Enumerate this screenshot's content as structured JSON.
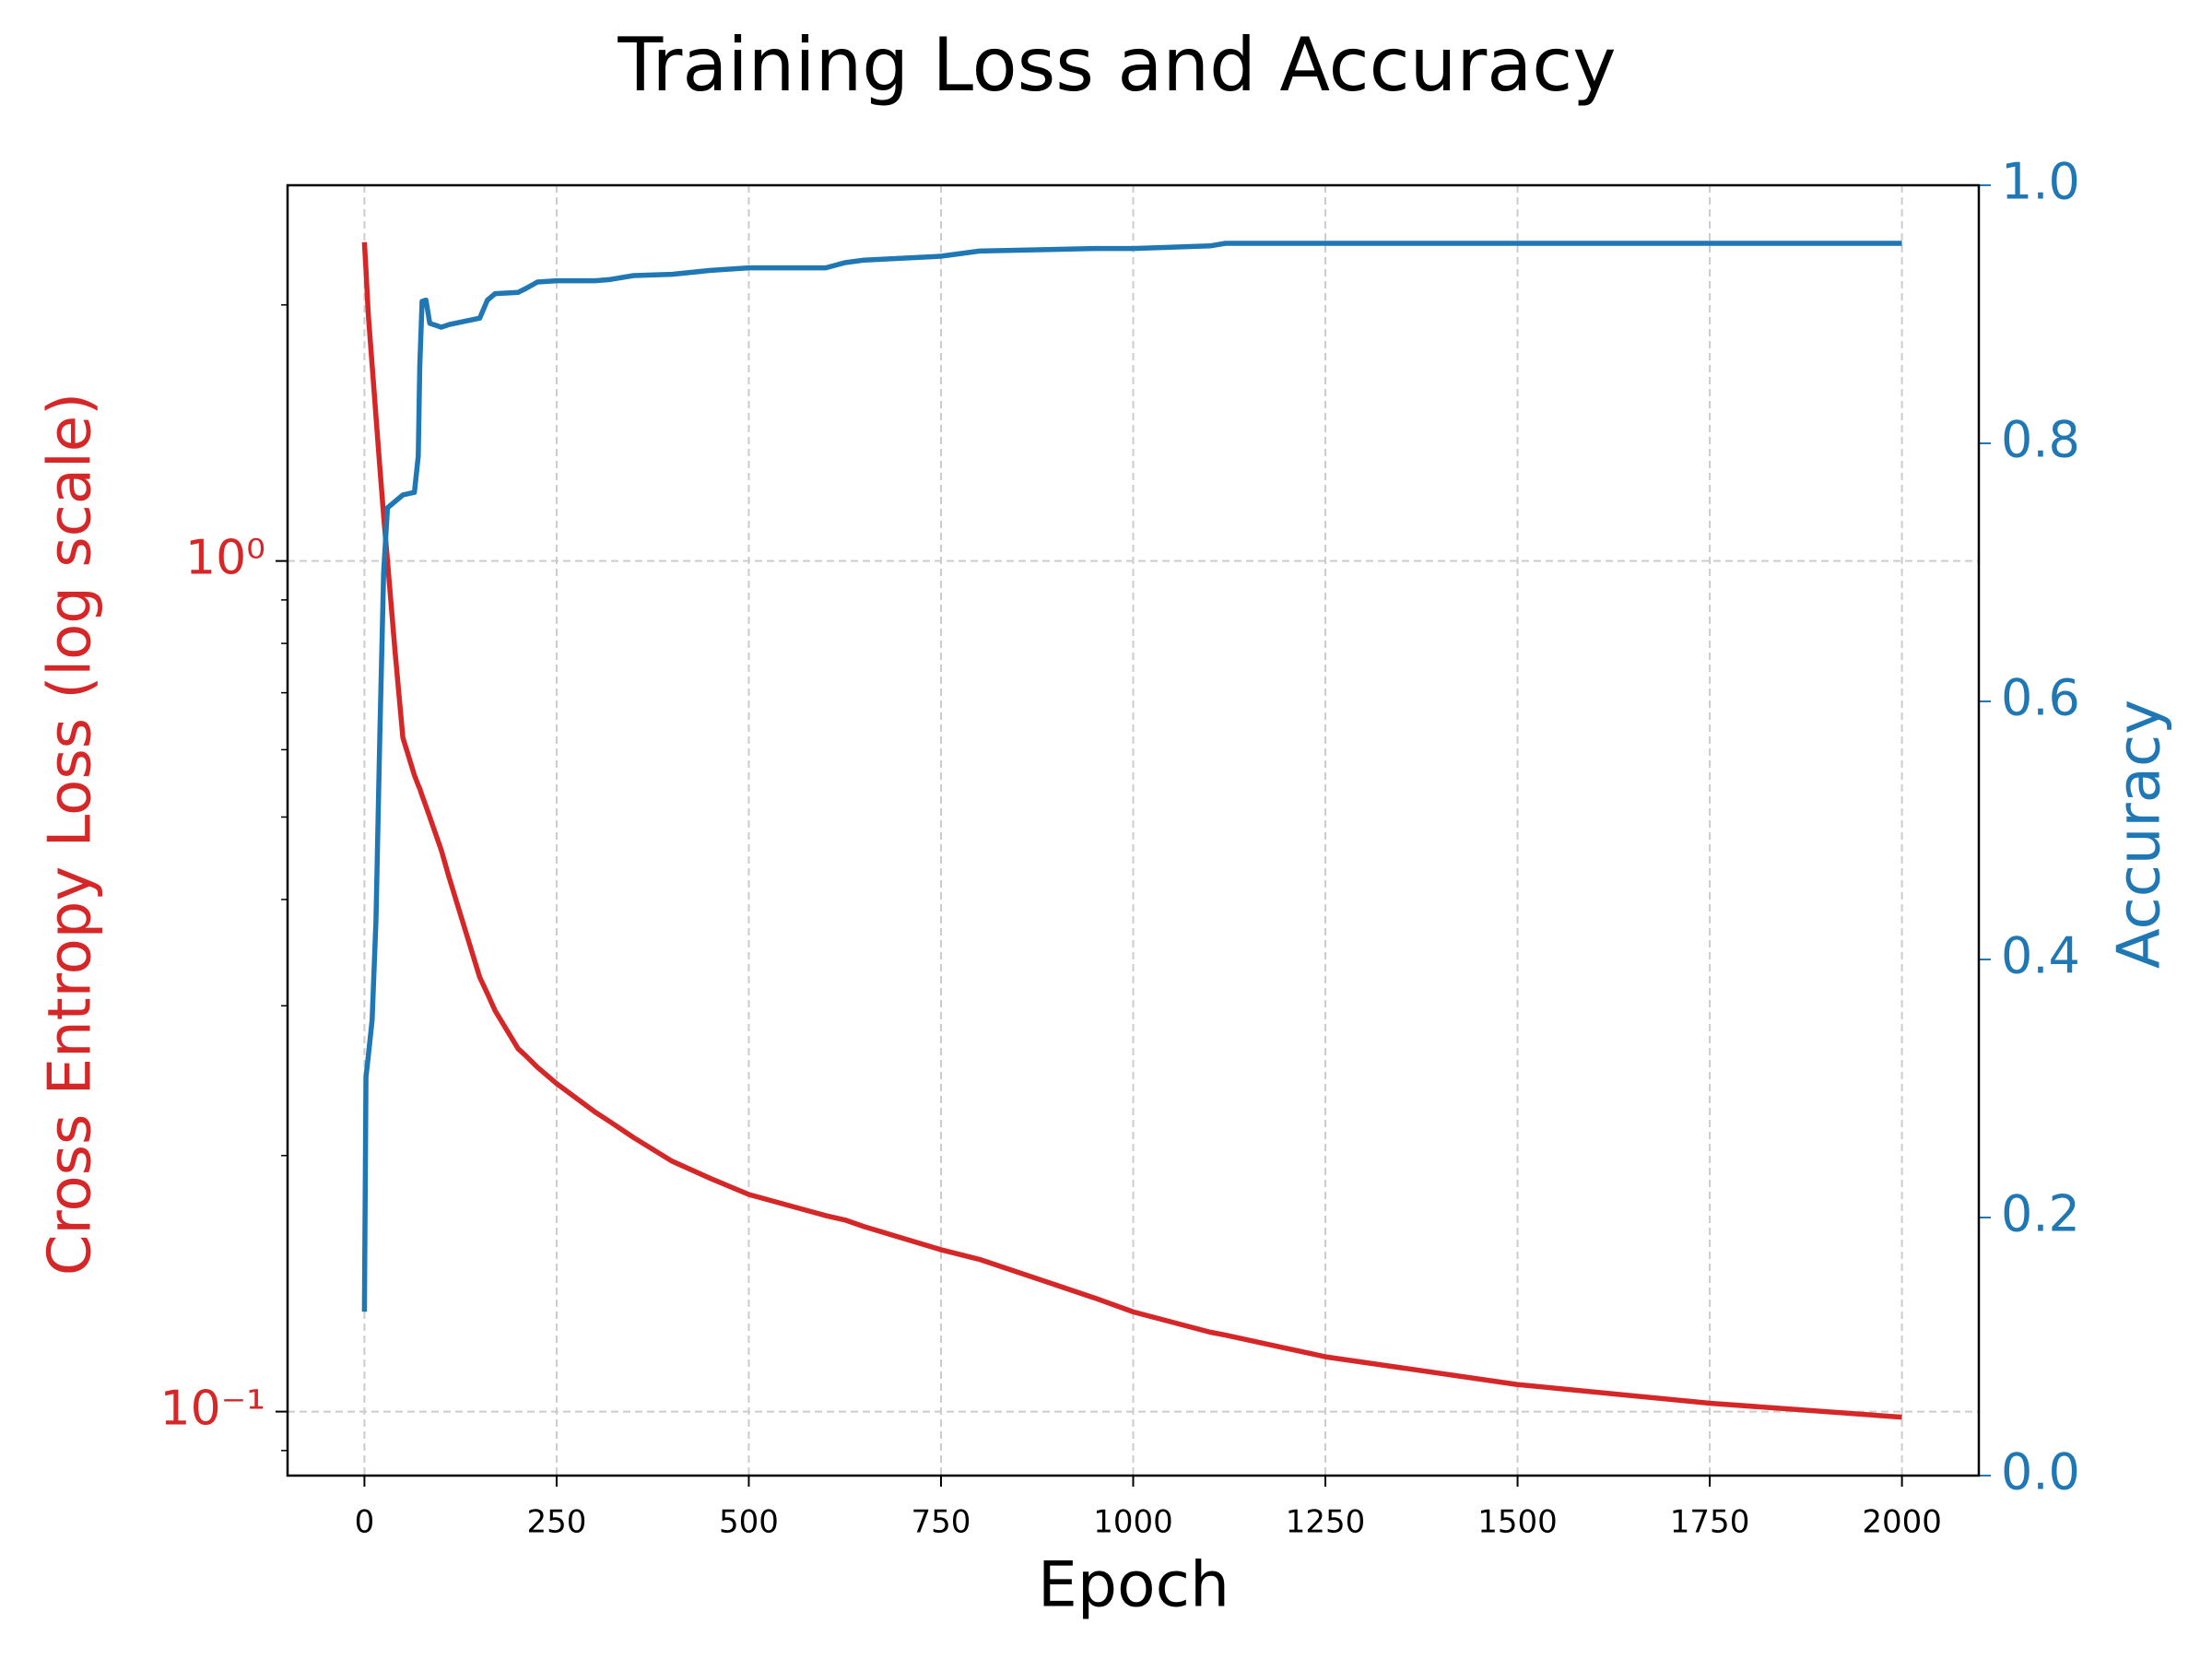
{
  "chart_data": {
    "type": "line",
    "title": "Training Loss and Accuracy",
    "xlabel": "Epoch",
    "ylabel": "Cross Entropy Loss (log scale)",
    "y2label": "Accuracy",
    "x": [
      0,
      2,
      5,
      10,
      15,
      20,
      25,
      30,
      40,
      50,
      65,
      70,
      72,
      75,
      80,
      85,
      100,
      110,
      150,
      160,
      170,
      200,
      210,
      225,
      250,
      300,
      320,
      350,
      400,
      450,
      500,
      600,
      625,
      650,
      750,
      800,
      950,
      1000,
      1100,
      1120,
      1250,
      1500,
      1750,
      2000
    ],
    "series": [
      {
        "name": "Cross Entropy Loss (log scale)",
        "color": "#d62728",
        "values": [
          2.37,
          2.2,
          1.95,
          1.7,
          1.48,
          1.29,
          1.13,
          1.0,
          0.78,
          0.62,
          0.56,
          0.545,
          0.54,
          0.53,
          0.515,
          0.5,
          0.457,
          0.425,
          0.324,
          0.31,
          0.296,
          0.267,
          0.262,
          0.254,
          0.243,
          0.225,
          0.219,
          0.21,
          0.197,
          0.188,
          0.18,
          0.17,
          0.168,
          0.165,
          0.155,
          0.151,
          0.136,
          0.131,
          0.124,
          0.123,
          0.116,
          0.1076,
          0.1023,
          0.0985
        ]
      },
      {
        "name": "Accuracy",
        "color": "#1f77b4",
        "axis": "y2",
        "values": [
          0.127,
          0.309,
          0.325,
          0.353,
          0.43,
          0.573,
          0.7,
          0.75,
          0.755,
          0.76,
          0.762,
          0.79,
          0.86,
          0.91,
          0.911,
          0.893,
          0.89,
          0.892,
          0.897,
          0.911,
          0.916,
          0.917,
          0.92,
          0.925,
          0.926,
          0.926,
          0.927,
          0.93,
          0.931,
          0.934,
          0.936,
          0.936,
          0.94,
          0.942,
          0.945,
          0.949,
          0.951,
          0.951,
          0.953,
          0.955,
          0.955,
          0.955,
          0.955,
          0.955
        ]
      }
    ],
    "xlim": [
      -100,
      2100
    ],
    "xticks": [
      0,
      250,
      500,
      750,
      1000,
      1250,
      1500,
      1750,
      2000
    ],
    "yscale": "log",
    "ylim": [
      0.0841,
      2.765
    ],
    "yticks": [
      {
        "value": 0.1,
        "label": "10⁻¹"
      },
      {
        "value": 1,
        "label": "10⁰"
      }
    ],
    "y2lim": [
      0,
      1
    ],
    "y2ticks": [
      {
        "value": 0,
        "label": "0.0"
      },
      0.2,
      0.4,
      0.6,
      0.8,
      {
        "value": 1,
        "label": "1.0"
      }
    ],
    "grid": true
  }
}
